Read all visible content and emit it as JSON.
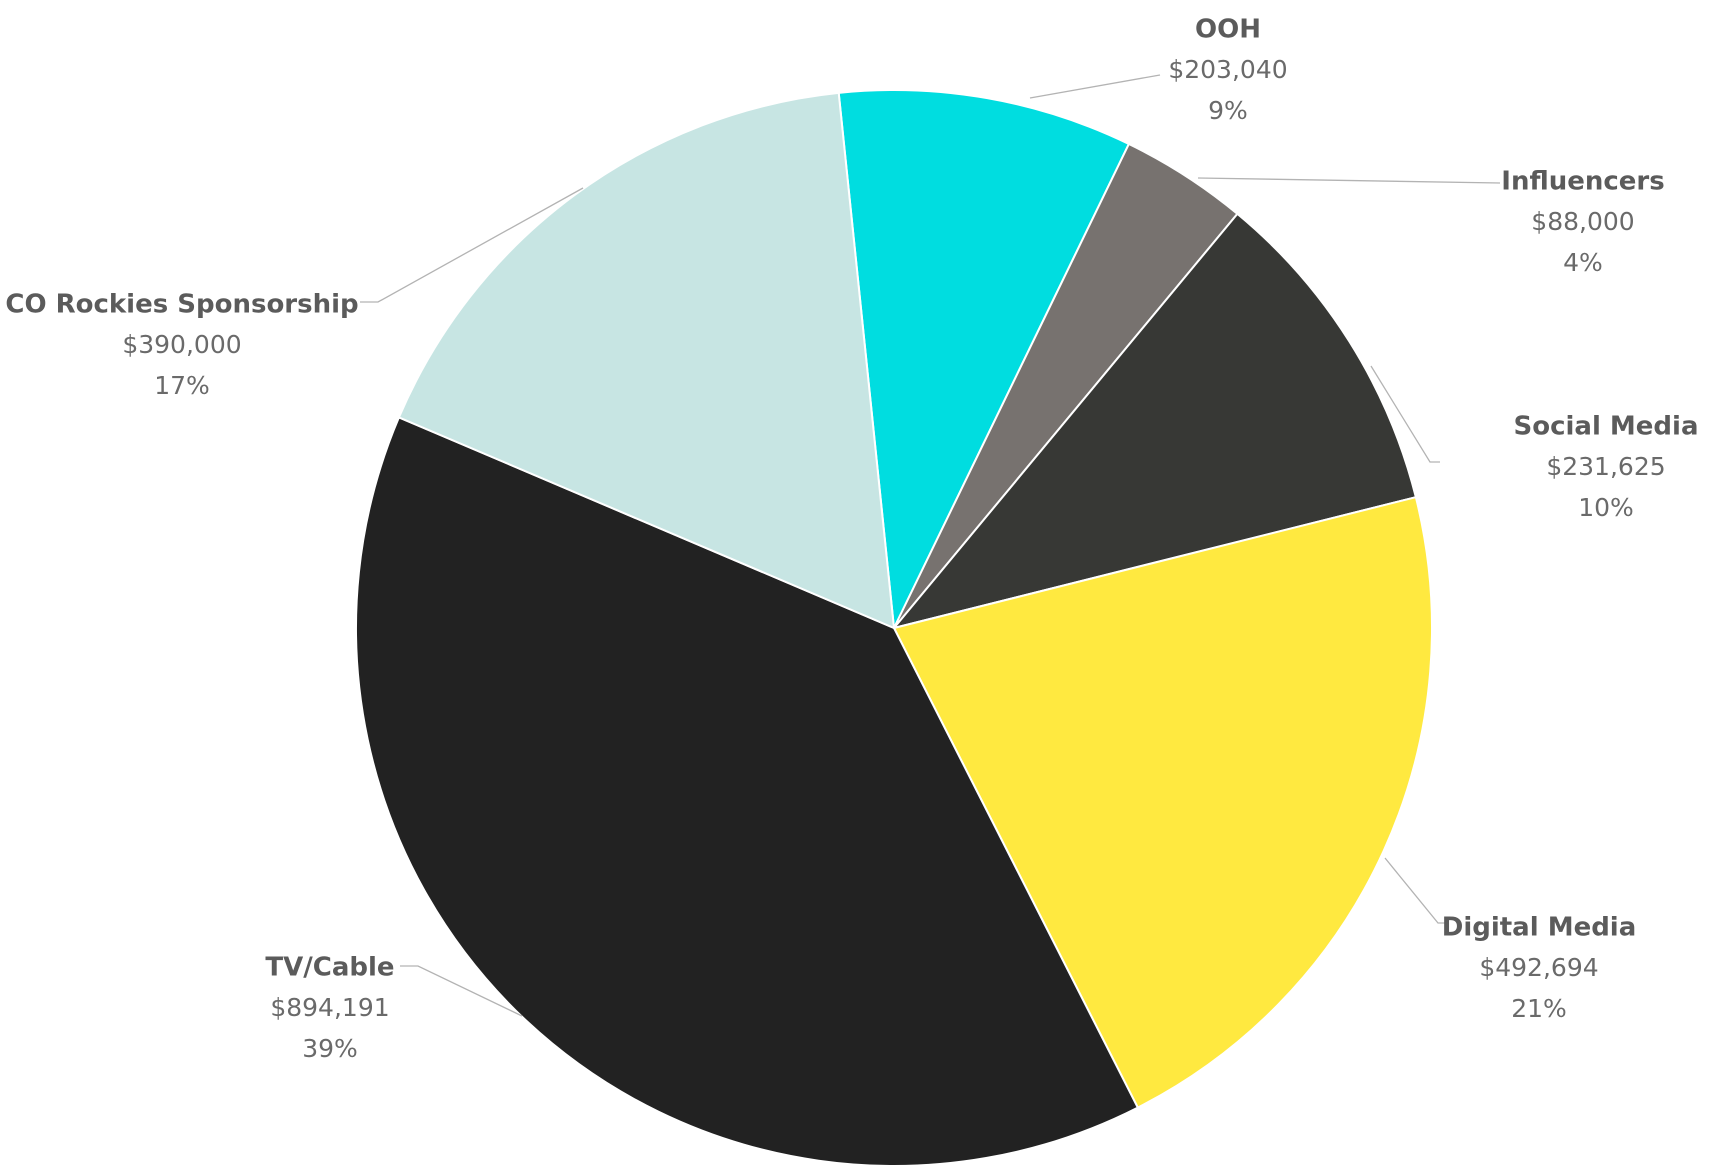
{
  "chart_data": {
    "type": "pie",
    "title": "",
    "start_angle_deg": -5.9,
    "direction": "clockwise",
    "slices": [
      {
        "label": "OOH",
        "value": 203040,
        "value_label": "$203,040",
        "percent_label": "9%",
        "color": "#00dde0"
      },
      {
        "label": "Influencers",
        "value": 88000,
        "value_label": "$88,000",
        "percent_label": "4%",
        "color": "#77726f"
      },
      {
        "label": "Social Media",
        "value": 231625,
        "value_label": "$231,625",
        "percent_label": "10%",
        "color": "#373835"
      },
      {
        "label": "Digital Media",
        "value": 492694,
        "value_label": "$492,694",
        "percent_label": "21%",
        "color": "#ffe940"
      },
      {
        "label": "TV/Cable",
        "value": 894191,
        "value_label": "$894,191",
        "percent_label": "39%",
        "color": "#222222"
      },
      {
        "label": "CO Rockies Sponsorship",
        "value": 390000,
        "value_label": "$390,000",
        "percent_label": "17%",
        "color": "#c7e5e3"
      }
    ]
  }
}
